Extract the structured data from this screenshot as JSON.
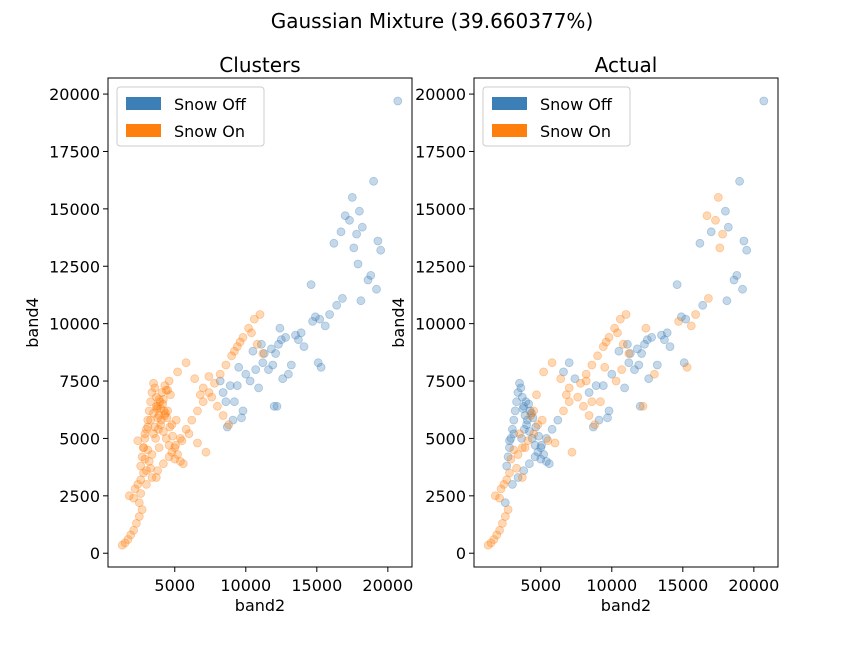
{
  "figure": {
    "suptitle": "Gaussian Mixture (39.660377%)"
  },
  "colors": {
    "snow_off": "#3c7fb6",
    "snow_on": "#ff7f0e"
  },
  "chart_data": [
    {
      "type": "scatter",
      "title": "Clusters",
      "xlabel": "band2",
      "ylabel": "band4",
      "xlim": [
        300,
        21700
      ],
      "ylim": [
        -600,
        20700
      ],
      "xticks": [
        5000,
        10000,
        15000,
        20000
      ],
      "yticks": [
        0,
        2500,
        5000,
        7500,
        10000,
        12500,
        15000,
        17500,
        20000
      ],
      "grid": false,
      "legend_position": "top-left",
      "legend": [
        "Snow Off",
        "Snow On"
      ],
      "series": [
        {
          "name": "Snow Off",
          "color": "#3c7fb6",
          "x": [
            20700,
            19000,
            17500,
            17300,
            17000,
            16700,
            18000,
            18200,
            16200,
            17800,
            19300,
            19500,
            18800,
            18600,
            19200,
            18100,
            17900,
            17600,
            16800,
            16400,
            15900,
            15200,
            14600,
            14900,
            15600,
            13500,
            12800,
            12300,
            12100,
            11600,
            11200,
            13200,
            13000,
            12600,
            11900,
            11300,
            11100,
            10500,
            10700,
            10900,
            10300,
            12000,
            12200,
            9400,
            9800,
            9700,
            9100,
            8700,
            8600,
            8400,
            8200,
            8900,
            9500,
            13700,
            13900,
            14100,
            12500,
            15100,
            15300,
            14700,
            10000,
            11800,
            12400,
            9200
          ],
          "y": [
            19700,
            16200,
            15500,
            14500,
            14700,
            14000,
            14900,
            14200,
            13500,
            13900,
            13600,
            13200,
            12100,
            11900,
            11500,
            11000,
            12600,
            13300,
            11100,
            10800,
            10400,
            10200,
            11700,
            10300,
            9900,
            9500,
            9400,
            9100,
            8700,
            8000,
            8300,
            8200,
            7800,
            7600,
            8200,
            8700,
            9100,
            8800,
            8000,
            7200,
            7500,
            6400,
            6400,
            7300,
            6200,
            5900,
            5800,
            5500,
            6600,
            7000,
            7500,
            7300,
            8100,
            9300,
            9600,
            9000,
            9300,
            8300,
            8100,
            10100,
            7800,
            8900,
            9800,
            6600
          ]
        },
        {
          "name": "Snow On",
          "color": "#ff7f0e",
          "x": [
            1300,
            1500,
            1700,
            1900,
            2100,
            2300,
            2500,
            2700,
            1800,
            2200,
            2600,
            3000,
            3200,
            3400,
            2800,
            2400,
            2900,
            3100,
            3300,
            3500,
            3700,
            3900,
            4100,
            4300,
            4500,
            4700,
            2600,
            2700,
            2800,
            2900,
            3000,
            3100,
            3200,
            3300,
            3400,
            3500,
            3600,
            3700,
            3800,
            3900,
            4000,
            4200,
            4400,
            4600,
            4800,
            5000,
            5200,
            5400,
            5600,
            2500,
            2600,
            3000,
            3400,
            3800,
            4200,
            4600,
            5000,
            5400,
            5800,
            6200,
            6600,
            7000,
            7400,
            7800,
            8200,
            8600,
            9000,
            9400,
            9800,
            10200,
            10600,
            11000,
            3600,
            3800,
            4000,
            4200,
            4400,
            4600,
            5200,
            5800,
            6400,
            7000,
            7600,
            8000,
            8400,
            8800,
            6000,
            6600,
            7200,
            5500,
            4800,
            4300,
            3900,
            3500,
            3100,
            2800,
            2400,
            2100,
            9200,
            9600,
            10400,
            10800,
            11200,
            6800,
            7400,
            5100,
            4500,
            3700,
            3300,
            2900,
            3650,
            3850,
            4050,
            4250,
            4450,
            4650,
            4850,
            5050,
            3750,
            3950,
            4150,
            4350
          ],
          "y": [
            350,
            450,
            600,
            800,
            1000,
            1300,
            1600,
            1900,
            2500,
            2800,
            3200,
            3600,
            4000,
            4300,
            4600,
            4900,
            5200,
            5500,
            5800,
            6100,
            6400,
            6700,
            7000,
            7300,
            7100,
            6900,
            3800,
            4200,
            4600,
            5000,
            5400,
            5800,
            6200,
            6600,
            7000,
            7400,
            7200,
            6800,
            6400,
            6000,
            5600,
            5300,
            5000,
            4700,
            4400,
            4100,
            4300,
            4000,
            3900,
            2200,
            2600,
            3000,
            3300,
            3600,
            3900,
            4200,
            4600,
            5000,
            5400,
            5800,
            6200,
            6600,
            7000,
            7400,
            7800,
            8200,
            8600,
            9000,
            9400,
            9800,
            10200,
            10400,
            5500,
            5900,
            6300,
            6700,
            7100,
            7500,
            7900,
            8300,
            7600,
            7200,
            6800,
            6400,
            6000,
            5600,
            5200,
            4800,
            4400,
            4900,
            5600,
            6000,
            4600,
            5200,
            4500,
            3500,
            3000,
            2400,
            8800,
            9200,
            9600,
            9100,
            8700,
            6900,
            7700,
            5800,
            6200,
            3300,
            3700,
            4100,
            5000,
            5400,
            5800,
            6200,
            5900,
            5500,
            5100,
            4700,
            6300,
            6600,
            6500,
            6100
          ]
        }
      ]
    },
    {
      "type": "scatter",
      "title": "Actual",
      "xlabel": "band2",
      "ylabel": "band4",
      "xlim": [
        300,
        21700
      ],
      "ylim": [
        -600,
        20700
      ],
      "xticks": [
        5000,
        10000,
        15000,
        20000
      ],
      "yticks": [
        0,
        2500,
        5000,
        7500,
        10000,
        12500,
        15000,
        17500,
        20000
      ],
      "grid": false,
      "legend_position": "top-left",
      "legend": [
        "Snow Off",
        "Snow On"
      ],
      "series": [
        {
          "name": "Snow Off",
          "color": "#3c7fb6",
          "x": [
            20700,
            19000,
            16200,
            17000,
            18000,
            18200,
            19300,
            19500,
            18800,
            18600,
            19200,
            18100,
            16400,
            15200,
            14600,
            14900,
            13500,
            12800,
            12300,
            12100,
            11600,
            11200,
            13200,
            12600,
            11900,
            11300,
            11100,
            10500,
            10900,
            12000,
            9400,
            9800,
            9700,
            9100,
            8700,
            8400,
            8900,
            13700,
            13900,
            14100,
            12500,
            15100,
            10000,
            11800,
            2600,
            2700,
            2800,
            2900,
            3000,
            3100,
            3200,
            3300,
            3400,
            3500,
            3600,
            3700,
            3800,
            3900,
            4000,
            4200,
            4400,
            4600,
            4800,
            5000,
            5200,
            5400,
            5600,
            2500,
            3000,
            3400,
            3800,
            4200,
            4600,
            5000,
            5400,
            5800,
            6200,
            3650,
            3850,
            4050,
            4250,
            4450,
            4650,
            4850,
            5050,
            3750,
            3950,
            4150,
            4350,
            6600,
            7000,
            7400,
            2800,
            3100
          ],
          "y": [
            19700,
            16200,
            13500,
            14000,
            14900,
            14200,
            13600,
            13200,
            12100,
            11900,
            11500,
            11000,
            10800,
            10200,
            11700,
            10300,
            9500,
            9400,
            9100,
            8700,
            8000,
            8300,
            8200,
            7600,
            8200,
            8700,
            9100,
            8800,
            7200,
            6400,
            7300,
            6200,
            5900,
            5800,
            5500,
            7000,
            7300,
            9300,
            9600,
            9000,
            9300,
            8300,
            7800,
            8900,
            3800,
            4200,
            4600,
            5000,
            5400,
            5800,
            6200,
            6600,
            7000,
            7400,
            7200,
            6800,
            6400,
            6000,
            5600,
            5300,
            5000,
            4700,
            4400,
            4100,
            4300,
            4000,
            3900,
            2200,
            3000,
            3300,
            3600,
            3900,
            4200,
            4600,
            5000,
            5400,
            5800,
            5000,
            5400,
            5800,
            6200,
            5900,
            5500,
            5100,
            4700,
            6300,
            6600,
            6500,
            6100,
            7900,
            8300,
            7600,
            4900,
            5200
          ]
        },
        {
          "name": "Snow On",
          "color": "#ff7f0e",
          "x": [
            1300,
            1500,
            1700,
            1900,
            2100,
            2300,
            2500,
            2700,
            1800,
            2200,
            2600,
            17500,
            17300,
            16700,
            17800,
            17600,
            16800,
            15900,
            15600,
            13000,
            10700,
            10300,
            12200,
            8600,
            8200,
            9500,
            15300,
            14700,
            12400,
            9200,
            3400,
            3700,
            4100,
            4500,
            4700,
            6600,
            7000,
            7800,
            8200,
            8600,
            9000,
            9400,
            9800,
            10200,
            10600,
            11000,
            5200,
            5800,
            6400,
            7000,
            7600,
            8000,
            8400,
            8800,
            6000,
            7200,
            5500,
            4800,
            4300,
            3900,
            3500,
            3100,
            2800,
            2400,
            2100,
            9600,
            10400,
            10800,
            11200,
            6800,
            5100,
            4500,
            3700,
            3300,
            2900
          ],
          "y": [
            350,
            450,
            600,
            800,
            1000,
            1300,
            1600,
            1900,
            2500,
            2800,
            3200,
            15500,
            14500,
            14700,
            13900,
            13300,
            11100,
            10400,
            9900,
            7800,
            8000,
            7500,
            6400,
            6600,
            7500,
            8100,
            8100,
            10100,
            9800,
            6600,
            4300,
            4600,
            4900,
            5200,
            6900,
            6200,
            6600,
            7400,
            7800,
            8200,
            8600,
            9000,
            9400,
            9800,
            10200,
            10400,
            7900,
            8300,
            7600,
            7200,
            6800,
            6400,
            6000,
            5600,
            4800,
            4400,
            4900,
            5600,
            6000,
            4600,
            5200,
            4500,
            3500,
            3000,
            2400,
            9200,
            9600,
            9100,
            8700,
            6900,
            5800,
            6200,
            3300,
            3700,
            4100
          ]
        }
      ]
    }
  ]
}
